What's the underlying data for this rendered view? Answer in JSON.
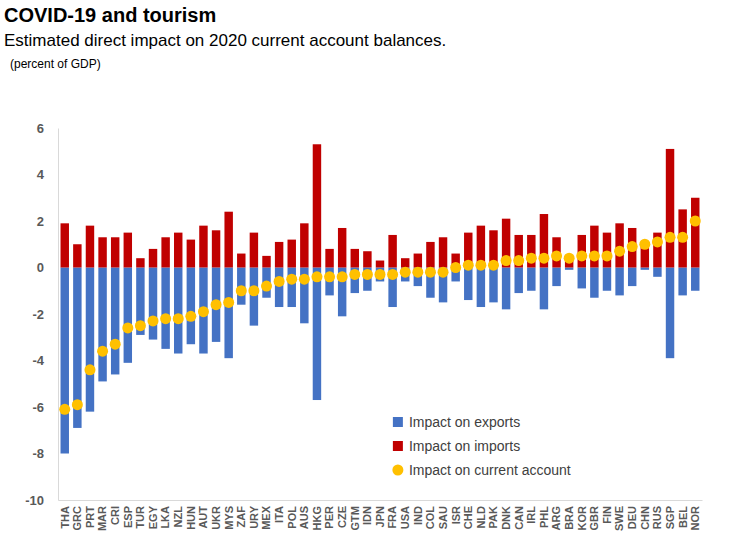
{
  "chart_data": {
    "type": "bar",
    "title": "COVID-19 and tourism",
    "subtitle": "Estimated direct impact on 2020 current account balances.",
    "y_label": "(percent of GDP)",
    "categories": [
      "THA",
      "GRC",
      "PRT",
      "MAR",
      "CRI",
      "ESP",
      "TUR",
      "EGY",
      "LKA",
      "NZL",
      "HUN",
      "AUT",
      "UKR",
      "MYS",
      "ZAF",
      "URY",
      "MEX",
      "ITA",
      "POL",
      "AUS",
      "HKG",
      "PER",
      "CZE",
      "GTM",
      "IDN",
      "JPN",
      "FRA",
      "USA",
      "IND",
      "COL",
      "SAU",
      "ISR",
      "CHE",
      "NLD",
      "PAK",
      "DNK",
      "CAN",
      "IRL",
      "PHL",
      "ARG",
      "BRA",
      "KOR",
      "GBR",
      "FIN",
      "SWE",
      "DEU",
      "CHN",
      "RUS",
      "SGP",
      "BEL",
      "NOR"
    ],
    "series": [
      {
        "name": "Impact on exports",
        "type": "bar",
        "color": "#4472c4",
        "values": [
          -8.0,
          -6.9,
          -6.2,
          -4.9,
          -4.6,
          -4.1,
          -2.9,
          -3.1,
          -3.5,
          -3.7,
          -3.3,
          -3.7,
          -3.2,
          -3.9,
          -1.6,
          -2.5,
          -1.3,
          -1.7,
          -1.7,
          -2.4,
          -5.7,
          -1.2,
          -2.1,
          -1.1,
          -1.0,
          -0.6,
          -1.7,
          -0.6,
          -0.8,
          -1.3,
          -1.5,
          -0.6,
          -1.4,
          -1.7,
          -1.5,
          -1.8,
          -1.1,
          -1.0,
          -1.8,
          -0.8,
          -0.1,
          -0.9,
          -1.3,
          -1.0,
          -1.2,
          -0.8,
          -0.1,
          -0.4,
          -3.9,
          -1.2,
          -1.0
        ]
      },
      {
        "name": "Impact on imports",
        "type": "bar",
        "color": "#c00000",
        "values": [
          1.9,
          1.0,
          1.8,
          1.3,
          1.3,
          1.5,
          0.4,
          0.8,
          1.3,
          1.5,
          1.2,
          1.8,
          1.6,
          2.4,
          0.6,
          1.5,
          0.5,
          1.1,
          1.2,
          1.9,
          5.3,
          0.8,
          1.7,
          0.8,
          0.7,
          0.3,
          1.4,
          0.4,
          0.6,
          1.1,
          1.3,
          0.6,
          1.5,
          1.8,
          1.6,
          2.1,
          1.4,
          1.4,
          2.3,
          1.3,
          0.5,
          1.4,
          1.8,
          1.5,
          1.9,
          1.7,
          1.1,
          1.5,
          5.1,
          2.5,
          3.0
        ]
      },
      {
        "name": "Impact on current account",
        "type": "scatter",
        "marker": "circle",
        "color": "#ffc000",
        "values": [
          -6.1,
          -5.9,
          -4.4,
          -3.6,
          -3.3,
          -2.6,
          -2.5,
          -2.3,
          -2.2,
          -2.2,
          -2.1,
          -1.9,
          -1.6,
          -1.5,
          -1.0,
          -1.0,
          -0.8,
          -0.6,
          -0.5,
          -0.5,
          -0.4,
          -0.4,
          -0.4,
          -0.3,
          -0.3,
          -0.3,
          -0.3,
          -0.2,
          -0.2,
          -0.2,
          -0.2,
          0.0,
          0.1,
          0.1,
          0.1,
          0.3,
          0.3,
          0.4,
          0.4,
          0.5,
          0.4,
          0.5,
          0.5,
          0.5,
          0.7,
          0.9,
          1.0,
          1.1,
          1.3,
          1.3,
          2.0
        ]
      }
    ],
    "ylim": [
      -10,
      6
    ],
    "yticks": [
      -10,
      -8,
      -6,
      -4,
      -2,
      0,
      2,
      4,
      6
    ],
    "grid": false,
    "legend": "bottom"
  }
}
